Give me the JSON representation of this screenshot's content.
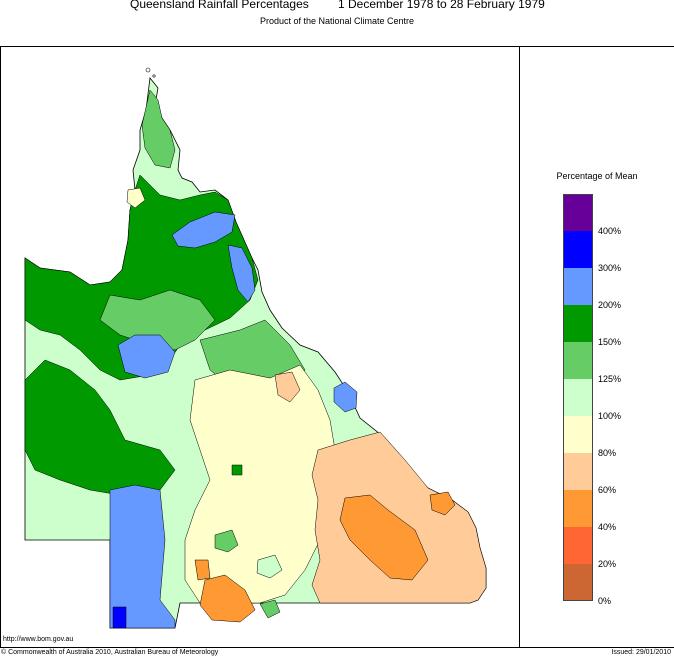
{
  "header": {
    "title_left": "Queensland Rainfall Percentages",
    "title_right": "1 December 1978 to 28 February 1979",
    "subtitle": "Product of the National Climate Centre"
  },
  "legend": {
    "title": "Percentage of Mean",
    "classes": [
      {
        "color": "#660099",
        "label": ""
      },
      {
        "color": "#0000ff",
        "label": "400%"
      },
      {
        "color": "#6699ff",
        "label": "300%"
      },
      {
        "color": "#009900",
        "label": "200%"
      },
      {
        "color": "#66cc66",
        "label": "150%"
      },
      {
        "color": "#ccffcc",
        "label": "125%"
      },
      {
        "color": "#ffffcc",
        "label": "100%"
      },
      {
        "color": "#ffcc99",
        "label": "80%"
      },
      {
        "color": "#ff9933",
        "label": "60%"
      },
      {
        "color": "#ff6633",
        "label": "40%"
      },
      {
        "color": "#cc6633",
        "label": "20%"
      }
    ],
    "bottom_label": "0%"
  },
  "footer": {
    "url": "http://www.bom.gov.au",
    "copyright": "© Commonwealth of Australia 2010, Australian Bureau of Meteorology",
    "issued": "Issued: 29/01/2010"
  }
}
